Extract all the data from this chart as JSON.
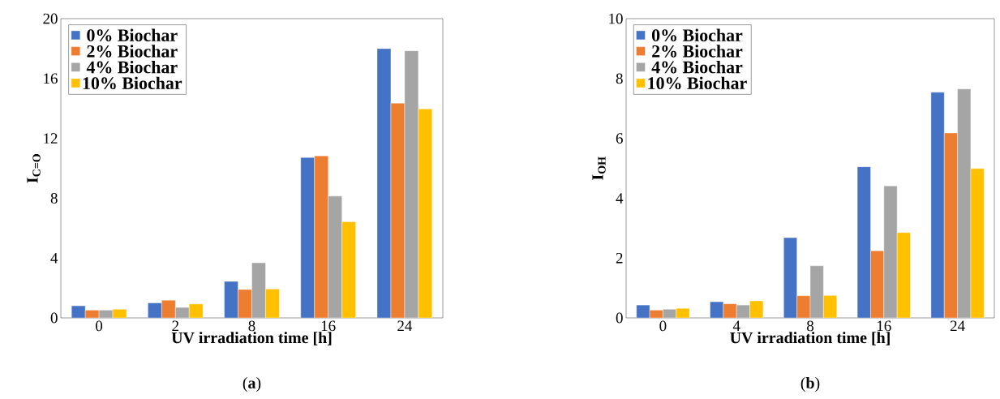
{
  "chart_data": [
    {
      "type": "bar",
      "ylabel": "I$_{C=O}$",
      "xlabel": "UV irradiation time [h]",
      "categories": [
        "0",
        "2",
        "8",
        "16",
        "24"
      ],
      "ylim": [
        0,
        20
      ],
      "yticks": [
        0,
        4,
        8,
        12,
        16,
        20
      ],
      "legend": "top left",
      "annotations": [
        "(**a**)"
      ],
      "series": [
        {
          "name": "0% Biochar",
          "color": "#4472c4",
          "values": [
            0.81,
            1.0,
            2.44,
            10.72,
            18.0
          ]
        },
        {
          "name": "2% Biochar",
          "color": "#ed7d31",
          "values": [
            0.52,
            1.18,
            1.9,
            10.83,
            14.35
          ]
        },
        {
          "name": "4% Biochar",
          "color": "#a5a5a5",
          "values": [
            0.52,
            0.7,
            3.68,
            8.14,
            17.85
          ]
        },
        {
          "name": "10% Biochar",
          "color": "#ffc000",
          "values": [
            0.58,
            0.93,
            1.93,
            6.42,
            13.97
          ]
        }
      ]
    },
    {
      "type": "bar",
      "ylabel": "I$_{OH}$",
      "xlabel": "UV irradiation time [h]",
      "categories": [
        "0",
        "4",
        "8",
        "16",
        "24"
      ],
      "ylim": [
        0,
        10
      ],
      "yticks": [
        0,
        2,
        4,
        6,
        8,
        10
      ],
      "legend": "top left",
      "annotations": [
        "(**b**)"
      ],
      "series": [
        {
          "name": "0% Biochar",
          "color": "#4472c4",
          "values": [
            0.43,
            0.54,
            2.68,
            5.05,
            7.54
          ]
        },
        {
          "name": "2% Biochar",
          "color": "#ed7d31",
          "values": [
            0.26,
            0.47,
            0.74,
            2.24,
            6.18
          ]
        },
        {
          "name": "4% Biochar",
          "color": "#a5a5a5",
          "values": [
            0.29,
            0.43,
            1.74,
            4.41,
            7.65
          ]
        },
        {
          "name": "10% Biochar",
          "color": "#ffc000",
          "values": [
            0.32,
            0.57,
            0.75,
            2.85,
            4.99
          ]
        }
      ]
    }
  ]
}
